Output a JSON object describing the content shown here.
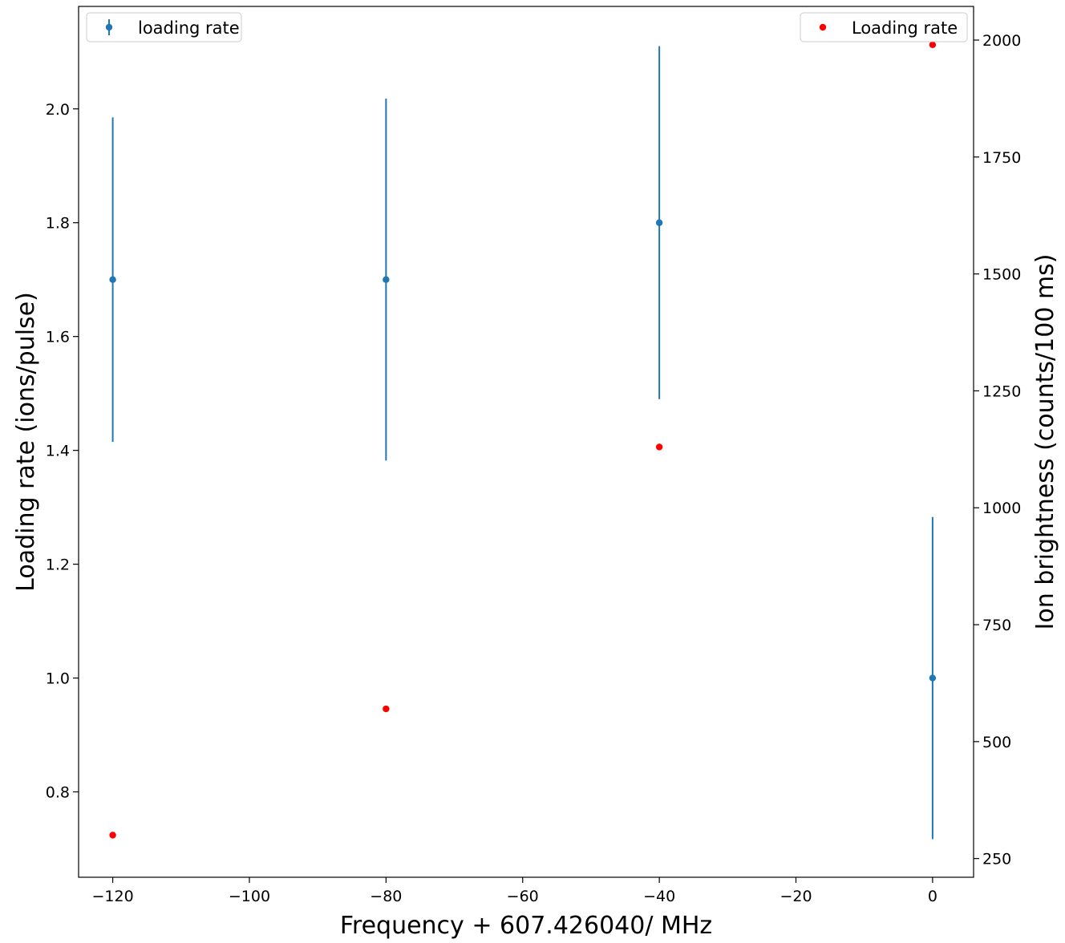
{
  "chart_data": {
    "type": "scatter",
    "xlabel": "Frequency + 607.426040/ MHz",
    "ylabel_left": "Loading rate (ions/pulse)",
    "ylabel_right": "Ion brightness (counts/100 ms)",
    "xlim": [
      -125,
      6
    ],
    "ylim_left": [
      0.65,
      2.18
    ],
    "ylim_right": [
      210,
      2072
    ],
    "x_ticks": [
      -120,
      -100,
      -80,
      -60,
      -40,
      -20,
      0
    ],
    "y_ticks_left": [
      0.8,
      1.0,
      1.2,
      1.4,
      1.6,
      1.8,
      2.0
    ],
    "y_ticks_right": [
      250,
      500,
      750,
      1000,
      1250,
      1500,
      1750,
      2000
    ],
    "grid": false,
    "series": [
      {
        "name": "loading rate",
        "axis": "left",
        "kind": "errorbar",
        "color": "#1f77b4",
        "legend_position": "top-left",
        "x": [
          -120,
          -80,
          -40,
          0
        ],
        "y": [
          1.7,
          1.7,
          1.8,
          1.0
        ],
        "yerr": [
          0.285,
          0.318,
          0.31,
          0.283
        ]
      },
      {
        "name": "Loading rate",
        "axis": "right",
        "kind": "scatter",
        "color": "#ff0000",
        "legend_position": "top-right",
        "x": [
          -120,
          -80,
          -40,
          0
        ],
        "y": [
          300,
          570,
          1130,
          1990
        ]
      }
    ]
  }
}
